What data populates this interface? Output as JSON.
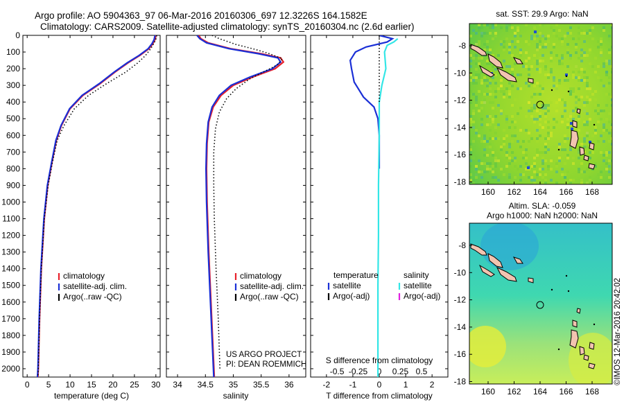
{
  "header": {
    "line1": "Argo profile: AO 5904363_97 06-Mar-2016 20160306_697 12.3226S 164.1582E",
    "line2": "Climatology: CARS2009. Satellite-adjusted climatology: synTS_20160304.nc (2.6d earlier)"
  },
  "colors": {
    "climatology": "#e8202a",
    "satellite": "#1a2fd6",
    "argo": "#000000",
    "cyan": "#33e6e6",
    "magenta": "#e020e0",
    "land": "#f2c4b0"
  },
  "chart_data": [
    {
      "type": "line",
      "id": "temperature",
      "xlabel": "temperature (deg C)",
      "ylabel": "",
      "xlim": [
        -1,
        31
      ],
      "ylim": [
        2050,
        0
      ],
      "xticks": [
        0,
        5,
        10,
        15,
        20,
        25,
        30
      ],
      "yticks": [
        0,
        100,
        200,
        300,
        400,
        500,
        600,
        700,
        800,
        900,
        1000,
        1100,
        1200,
        1300,
        1400,
        1500,
        1600,
        1700,
        1800,
        1900,
        2000
      ],
      "legend": [
        "climatology",
        "satellite-adj. clim.",
        "Argo(..raw -QC)"
      ],
      "legend_position": "lower-left",
      "series": [
        {
          "name": "climatology",
          "style": "solid",
          "color": "#e8202a",
          "points": [
            [
              30,
              0
            ],
            [
              29.8,
              25
            ],
            [
              29.3,
              50
            ],
            [
              28.4,
              80
            ],
            [
              26.3,
              120
            ],
            [
              23.5,
              165
            ],
            [
              20.5,
              220
            ],
            [
              17,
              290
            ],
            [
              13,
              360
            ],
            [
              10,
              440
            ],
            [
              8,
              540
            ],
            [
              6.8,
              630
            ],
            [
              5.8,
              760
            ],
            [
              4.8,
              900
            ],
            [
              4,
              1100
            ],
            [
              3.3,
              1400
            ],
            [
              2.9,
              1700
            ],
            [
              2.6,
              2000
            ],
            [
              2.5,
              2050
            ]
          ]
        },
        {
          "name": "satellite-adj. clim.",
          "style": "solid",
          "color": "#1a2fd6",
          "points": [
            [
              29.8,
              0
            ],
            [
              29.6,
              25
            ],
            [
              29.1,
              50
            ],
            [
              28.2,
              80
            ],
            [
              26.1,
              120
            ],
            [
              23.3,
              165
            ],
            [
              20.3,
              220
            ],
            [
              16.8,
              290
            ],
            [
              12.8,
              360
            ],
            [
              9.9,
              440
            ],
            [
              7.9,
              540
            ],
            [
              6.7,
              630
            ],
            [
              5.7,
              760
            ],
            [
              4.7,
              900
            ],
            [
              3.9,
              1100
            ],
            [
              3.2,
              1400
            ],
            [
              2.8,
              1700
            ],
            [
              2.5,
              2000
            ],
            [
              2.4,
              2050
            ]
          ]
        },
        {
          "name": "Argo(..raw -QC)",
          "style": "dotted",
          "color": "#000000",
          "points": [
            [
              30.2,
              0
            ],
            [
              30,
              25
            ],
            [
              29.5,
              50
            ],
            [
              28.8,
              80
            ],
            [
              27.6,
              120
            ],
            [
              25.8,
              165
            ],
            [
              23,
              220
            ],
            [
              18.5,
              290
            ],
            [
              14.3,
              360
            ],
            [
              11,
              440
            ],
            [
              8.6,
              540
            ],
            [
              7,
              630
            ],
            [
              5.9,
              760
            ],
            [
              4.9,
              900
            ],
            [
              4,
              1100
            ],
            [
              3.3,
              1400
            ],
            [
              2.9,
              1700
            ],
            [
              2.6,
              2000
            ],
            [
              2.5,
              2050
            ]
          ]
        }
      ]
    },
    {
      "type": "line",
      "id": "salinity",
      "xlabel": "salinity",
      "xlim": [
        33.8,
        36.3
      ],
      "ylim": [
        2050,
        0
      ],
      "xticks": [
        34,
        34.5,
        35,
        35.5,
        36
      ],
      "xticklabels": [
        "34",
        "34.5",
        "35",
        "35.5",
        "36"
      ],
      "legend": [
        "climatology",
        "satellite-adj. clim.",
        "Argo(..raw -QC)"
      ],
      "legend_position": "lower-right",
      "annotations": [
        "US ARGO PROJECT",
        "PI: DEAN ROEMMICH"
      ],
      "series": [
        {
          "name": "climatology",
          "style": "solid",
          "color": "#e8202a",
          "points": [
            [
              34.38,
              0
            ],
            [
              34.42,
              20
            ],
            [
              34.55,
              45
            ],
            [
              34.95,
              80
            ],
            [
              35.5,
              110
            ],
            [
              35.85,
              135
            ],
            [
              35.9,
              160
            ],
            [
              35.75,
              200
            ],
            [
              35.35,
              250
            ],
            [
              35,
              300
            ],
            [
              34.78,
              360
            ],
            [
              34.64,
              430
            ],
            [
              34.56,
              520
            ],
            [
              34.53,
              650
            ],
            [
              34.52,
              800
            ],
            [
              34.53,
              1000
            ],
            [
              34.56,
              1300
            ],
            [
              34.6,
              1600
            ],
            [
              34.64,
              1900
            ],
            [
              34.66,
              2050
            ]
          ]
        },
        {
          "name": "satellite-adj. clim.",
          "style": "solid",
          "color": "#1a2fd6",
          "points": [
            [
              34.35,
              0
            ],
            [
              34.4,
              20
            ],
            [
              34.52,
              45
            ],
            [
              34.92,
              80
            ],
            [
              35.45,
              110
            ],
            [
              35.8,
              135
            ],
            [
              35.85,
              160
            ],
            [
              35.7,
              200
            ],
            [
              35.3,
              250
            ],
            [
              34.96,
              300
            ],
            [
              34.75,
              360
            ],
            [
              34.62,
              430
            ],
            [
              34.55,
              520
            ],
            [
              34.52,
              650
            ],
            [
              34.51,
              800
            ],
            [
              34.52,
              1000
            ],
            [
              34.55,
              1300
            ],
            [
              34.59,
              1600
            ],
            [
              34.63,
              1900
            ],
            [
              34.65,
              2050
            ]
          ]
        },
        {
          "name": "Argo(..raw -QC)",
          "style": "dotted",
          "color": "#000000",
          "points": [
            [
              34.62,
              0
            ],
            [
              34.75,
              20
            ],
            [
              35.05,
              55
            ],
            [
              35.4,
              85
            ],
            [
              35.65,
              110
            ],
            [
              35.88,
              140
            ],
            [
              35.8,
              175
            ],
            [
              35.6,
              210
            ],
            [
              35.3,
              260
            ],
            [
              35.05,
              320
            ],
            [
              34.88,
              380
            ],
            [
              34.75,
              460
            ],
            [
              34.68,
              560
            ],
            [
              34.65,
              700
            ],
            [
              34.65,
              900
            ],
            [
              34.66,
              1100
            ],
            [
              34.69,
              1400
            ],
            [
              34.73,
              1700
            ],
            [
              34.76,
              2000
            ]
          ]
        }
      ]
    },
    {
      "type": "line",
      "id": "difference",
      "xlabel": "T difference from climatology",
      "xlabel2": "S difference from climatology",
      "xlim": [
        -2.6,
        2.6
      ],
      "ylim": [
        2050,
        0
      ],
      "xticks": [
        -2,
        -1,
        0,
        1,
        2
      ],
      "xticklabels_top": [
        "-0.5",
        "-0.25",
        "0",
        "0.25",
        "0.5"
      ],
      "legend": {
        "temperature_title": "temperature",
        "salinity_title": "salinity",
        "items": [
          "satellite",
          "Argo(-adj)",
          "satellite",
          "Argo(-adj)"
        ]
      },
      "legend_position": "lower-center",
      "series": [
        {
          "name": "temperature satellite",
          "style": "solid",
          "color": "#1a2fd6",
          "points": [
            [
              0,
              0
            ],
            [
              0.5,
              20
            ],
            [
              0.3,
              40
            ],
            [
              -0.5,
              70
            ],
            [
              -0.9,
              100
            ],
            [
              -1.1,
              150
            ],
            [
              -1.05,
              200
            ],
            [
              -0.95,
              280
            ],
            [
              -0.6,
              370
            ],
            [
              -0.2,
              430
            ],
            [
              -0.05,
              500
            ],
            [
              0,
              600
            ],
            [
              0,
              800
            ]
          ]
        },
        {
          "name": "salinity satellite",
          "style": "solid",
          "color": "#33e6e6",
          "points": [
            [
              0.7,
              20
            ],
            [
              0.55,
              40
            ],
            [
              0.3,
              60
            ],
            [
              0.2,
              100
            ],
            [
              0.25,
              200
            ],
            [
              0.1,
              300
            ],
            [
              0,
              400
            ],
            [
              0,
              600
            ],
            [
              -0.03,
              900
            ],
            [
              -0.03,
              1200
            ],
            [
              -0.05,
              1500
            ],
            [
              -0.05,
              1800
            ],
            [
              -0.05,
              2050
            ]
          ]
        },
        {
          "name": "Argo dotted",
          "style": "dotted",
          "color": "#000000",
          "points": [
            [
              0,
              0
            ],
            [
              0,
              400
            ]
          ]
        }
      ]
    }
  ],
  "maps": {
    "top": {
      "title": "sat. SST: 29.9 Argo: NaN",
      "yticks": [
        "-8",
        "-10",
        "-12",
        "-14",
        "-16",
        "-18"
      ],
      "xticks": [
        "160",
        "162",
        "164",
        "166",
        "168"
      ]
    },
    "bottom": {
      "title1": "Altim. SLA: -0.059",
      "title2": "Argo h1000: NaN h2000: NaN",
      "yticks": [
        "-8",
        "-10",
        "-12",
        "-14",
        "-16",
        "-18"
      ],
      "xticks": [
        "160",
        "162",
        "164",
        "166",
        "168"
      ]
    }
  },
  "footer": {
    "vertical_stamp": "©IMOS 12-Mar-2016 20:42:02"
  }
}
